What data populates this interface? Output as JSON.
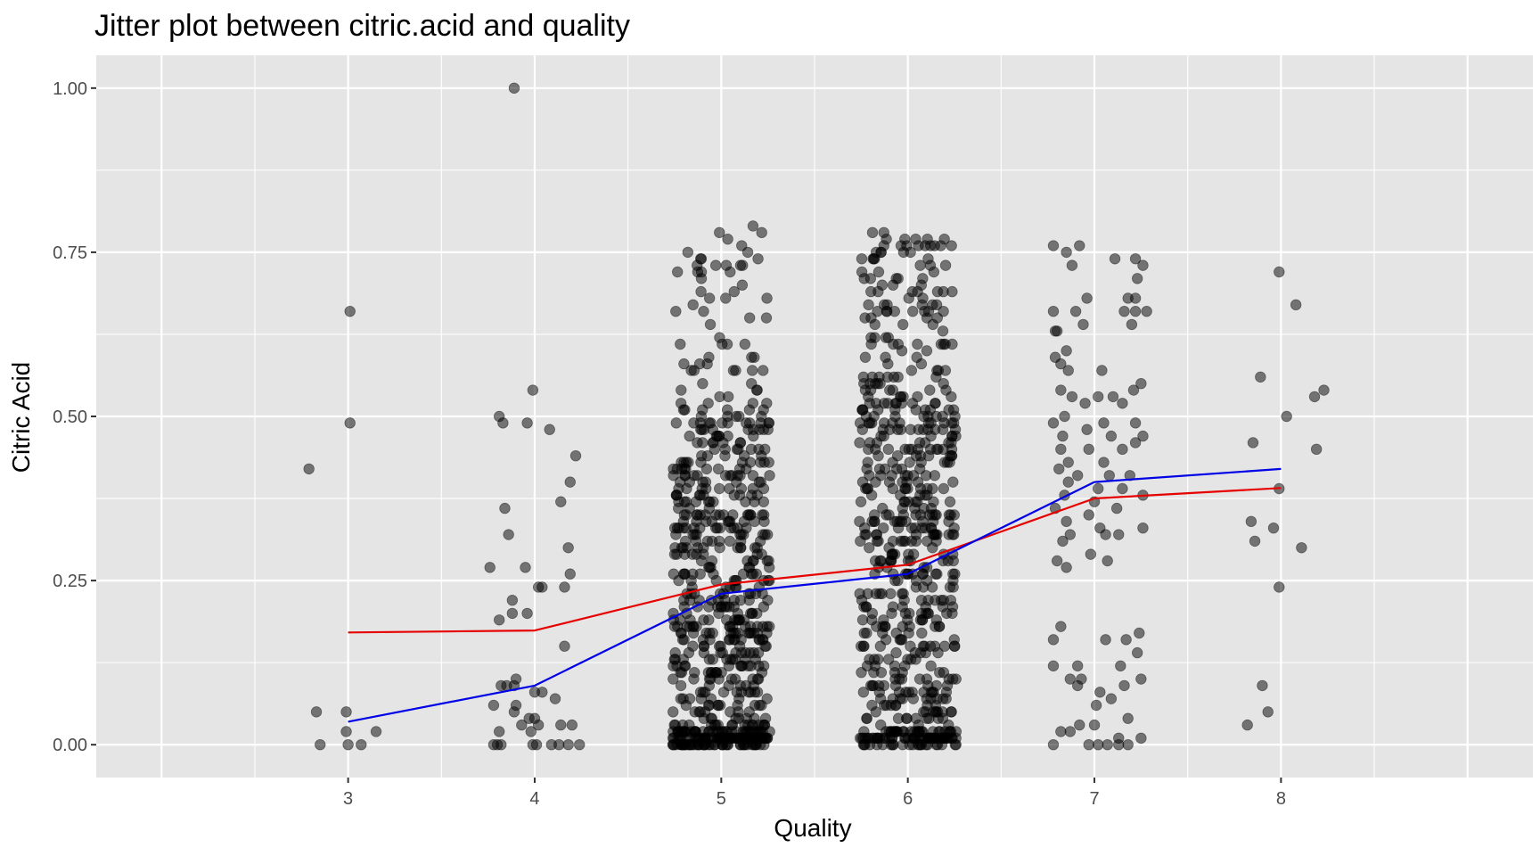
{
  "chart_data": {
    "type": "scatter",
    "title": "Jitter plot between citric.acid and quality",
    "xlabel": "Quality",
    "ylabel": "Citric Acid",
    "xlim": [
      1.65,
      9.35
    ],
    "ylim": [
      -0.05,
      1.05
    ],
    "x_ticks": [
      3,
      4,
      5,
      6,
      7,
      8
    ],
    "x_tick_labels": [
      "3",
      "4",
      "5",
      "6",
      "7",
      "8"
    ],
    "y_ticks": [
      0.0,
      0.25,
      0.5,
      0.75,
      1.0
    ],
    "y_tick_labels": [
      "0.00",
      "0.25",
      "0.50",
      "0.75",
      "1.00"
    ],
    "grid": true,
    "point_color": "#000000",
    "point_alpha": 0.5,
    "background_color": "#e5e5e5",
    "grid_color": "#ffffff",
    "series": [
      {
        "type": "line",
        "color": "#e60000",
        "x": [
          3,
          4,
          5,
          6,
          7,
          8
        ],
        "values": [
          0.171,
          0.174,
          0.244,
          0.274,
          0.375,
          0.391
        ]
      },
      {
        "type": "line",
        "color": "#0000e6",
        "x": [
          3,
          4,
          5,
          6,
          7,
          8
        ],
        "values": [
          0.035,
          0.09,
          0.23,
          0.26,
          0.4,
          0.42
        ]
      }
    ],
    "groups": [
      {
        "quality": 3,
        "points": [
          [
            2.79,
            0.42
          ],
          [
            3.01,
            0.66
          ],
          [
            3.01,
            0.49
          ],
          [
            2.83,
            0.05
          ],
          [
            2.99,
            0.05
          ],
          [
            2.99,
            0.02
          ],
          [
            3.15,
            0.02
          ],
          [
            2.85,
            0.0
          ],
          [
            3.0,
            0.0
          ],
          [
            3.07,
            0.0
          ]
        ]
      },
      {
        "quality": 4,
        "points": [
          [
            3.89,
            1.0
          ],
          [
            3.99,
            0.54
          ],
          [
            3.81,
            0.5
          ],
          [
            3.83,
            0.49
          ],
          [
            3.96,
            0.49
          ],
          [
            4.08,
            0.48
          ],
          [
            4.22,
            0.44
          ],
          [
            4.19,
            0.4
          ],
          [
            4.14,
            0.37
          ],
          [
            3.84,
            0.36
          ],
          [
            3.86,
            0.32
          ],
          [
            4.18,
            0.3
          ],
          [
            3.76,
            0.27
          ],
          [
            3.95,
            0.27
          ],
          [
            4.19,
            0.26
          ],
          [
            4.02,
            0.24
          ],
          [
            4.04,
            0.24
          ],
          [
            4.16,
            0.24
          ],
          [
            3.88,
            0.22
          ],
          [
            3.88,
            0.2
          ],
          [
            3.96,
            0.2
          ],
          [
            3.81,
            0.19
          ],
          [
            4.16,
            0.15
          ],
          [
            3.82,
            0.09
          ],
          [
            3.85,
            0.09
          ],
          [
            3.9,
            0.1
          ],
          [
            3.89,
            0.09
          ],
          [
            4.0,
            0.08
          ],
          [
            4.04,
            0.08
          ],
          [
            4.11,
            0.07
          ],
          [
            3.78,
            0.06
          ],
          [
            3.9,
            0.06
          ],
          [
            3.89,
            0.05
          ],
          [
            3.97,
            0.04
          ],
          [
            4.0,
            0.04
          ],
          [
            3.93,
            0.03
          ],
          [
            4.02,
            0.03
          ],
          [
            4.14,
            0.03
          ],
          [
            4.2,
            0.03
          ],
          [
            3.81,
            0.02
          ],
          [
            3.98,
            0.02
          ],
          [
            3.78,
            0.0
          ],
          [
            3.8,
            0.0
          ],
          [
            3.82,
            0.0
          ],
          [
            3.99,
            0.0
          ],
          [
            4.01,
            0.0
          ],
          [
            4.09,
            0.0
          ],
          [
            4.13,
            0.0
          ],
          [
            4.18,
            0.0
          ],
          [
            4.24,
            0.0
          ]
        ]
      },
      {
        "quality": 7,
        "points": [
          [
            6.78,
            0.76
          ],
          [
            6.85,
            0.75
          ],
          [
            6.92,
            0.76
          ],
          [
            7.11,
            0.74
          ],
          [
            7.22,
            0.74
          ],
          [
            7.26,
            0.73
          ],
          [
            6.88,
            0.73
          ],
          [
            7.23,
            0.71
          ],
          [
            6.96,
            0.68
          ],
          [
            7.18,
            0.68
          ],
          [
            7.22,
            0.68
          ],
          [
            6.9,
            0.66
          ],
          [
            6.78,
            0.66
          ],
          [
            7.16,
            0.66
          ],
          [
            7.22,
            0.66
          ],
          [
            7.28,
            0.66
          ],
          [
            6.94,
            0.64
          ],
          [
            7.2,
            0.64
          ],
          [
            6.79,
            0.63
          ],
          [
            6.8,
            0.63
          ],
          [
            6.85,
            0.6
          ],
          [
            6.79,
            0.59
          ],
          [
            6.82,
            0.58
          ],
          [
            6.86,
            0.57
          ],
          [
            7.04,
            0.57
          ],
          [
            7.25,
            0.55
          ],
          [
            6.82,
            0.54
          ],
          [
            6.88,
            0.53
          ],
          [
            7.02,
            0.53
          ],
          [
            7.1,
            0.53
          ],
          [
            7.21,
            0.54
          ],
          [
            6.95,
            0.52
          ],
          [
            7.15,
            0.52
          ],
          [
            6.84,
            0.5
          ],
          [
            7.05,
            0.49
          ],
          [
            7.22,
            0.49
          ],
          [
            6.78,
            0.49
          ],
          [
            6.96,
            0.48
          ],
          [
            6.83,
            0.47
          ],
          [
            7.09,
            0.47
          ],
          [
            7.26,
            0.47
          ],
          [
            6.82,
            0.45
          ],
          [
            6.97,
            0.45
          ],
          [
            7.15,
            0.45
          ],
          [
            7.22,
            0.46
          ],
          [
            6.86,
            0.43
          ],
          [
            7.05,
            0.43
          ],
          [
            6.81,
            0.42
          ],
          [
            6.91,
            0.41
          ],
          [
            7.08,
            0.41
          ],
          [
            7.19,
            0.41
          ],
          [
            6.86,
            0.4
          ],
          [
            7.02,
            0.39
          ],
          [
            7.15,
            0.39
          ],
          [
            6.84,
            0.38
          ],
          [
            7.0,
            0.37
          ],
          [
            7.26,
            0.38
          ],
          [
            6.79,
            0.36
          ],
          [
            6.97,
            0.35
          ],
          [
            7.12,
            0.36
          ],
          [
            6.85,
            0.34
          ],
          [
            7.03,
            0.33
          ],
          [
            7.26,
            0.33
          ],
          [
            6.87,
            0.32
          ],
          [
            7.06,
            0.32
          ],
          [
            7.13,
            0.32
          ],
          [
            6.83,
            0.31
          ],
          [
            6.98,
            0.29
          ],
          [
            7.07,
            0.28
          ],
          [
            6.8,
            0.28
          ],
          [
            6.85,
            0.27
          ],
          [
            6.82,
            0.18
          ],
          [
            7.17,
            0.16
          ],
          [
            7.24,
            0.17
          ],
          [
            7.06,
            0.16
          ],
          [
            6.78,
            0.16
          ],
          [
            7.23,
            0.14
          ],
          [
            6.78,
            0.12
          ],
          [
            6.91,
            0.12
          ],
          [
            7.14,
            0.12
          ],
          [
            6.87,
            0.1
          ],
          [
            6.93,
            0.1
          ],
          [
            6.91,
            0.09
          ],
          [
            7.16,
            0.09
          ],
          [
            7.25,
            0.1
          ],
          [
            7.03,
            0.08
          ],
          [
            7.09,
            0.07
          ],
          [
            7.01,
            0.06
          ],
          [
            7.18,
            0.04
          ],
          [
            6.92,
            0.03
          ],
          [
            7.0,
            0.03
          ],
          [
            6.82,
            0.02
          ],
          [
            6.87,
            0.02
          ],
          [
            7.13,
            0.01
          ],
          [
            7.25,
            0.01
          ],
          [
            6.78,
            0.0
          ],
          [
            6.97,
            0.0
          ],
          [
            7.02,
            0.0
          ],
          [
            7.07,
            0.0
          ],
          [
            7.13,
            0.0
          ],
          [
            7.18,
            0.0
          ]
        ]
      },
      {
        "quality": 8,
        "points": [
          [
            7.99,
            0.72
          ],
          [
            8.08,
            0.67
          ],
          [
            7.89,
            0.56
          ],
          [
            8.23,
            0.54
          ],
          [
            8.18,
            0.53
          ],
          [
            8.03,
            0.5
          ],
          [
            7.85,
            0.46
          ],
          [
            8.19,
            0.45
          ],
          [
            7.99,
            0.39
          ],
          [
            7.84,
            0.34
          ],
          [
            7.96,
            0.33
          ],
          [
            7.86,
            0.31
          ],
          [
            8.11,
            0.3
          ],
          [
            7.99,
            0.24
          ],
          [
            7.9,
            0.09
          ],
          [
            7.93,
            0.05
          ],
          [
            7.82,
            0.03
          ]
        ]
      }
    ],
    "dense_groups": [
      {
        "quality": 5,
        "count": 681,
        "jitter_half_width": 0.26
      },
      {
        "quality": 6,
        "count": 638,
        "jitter_half_width": 0.26
      }
    ]
  }
}
